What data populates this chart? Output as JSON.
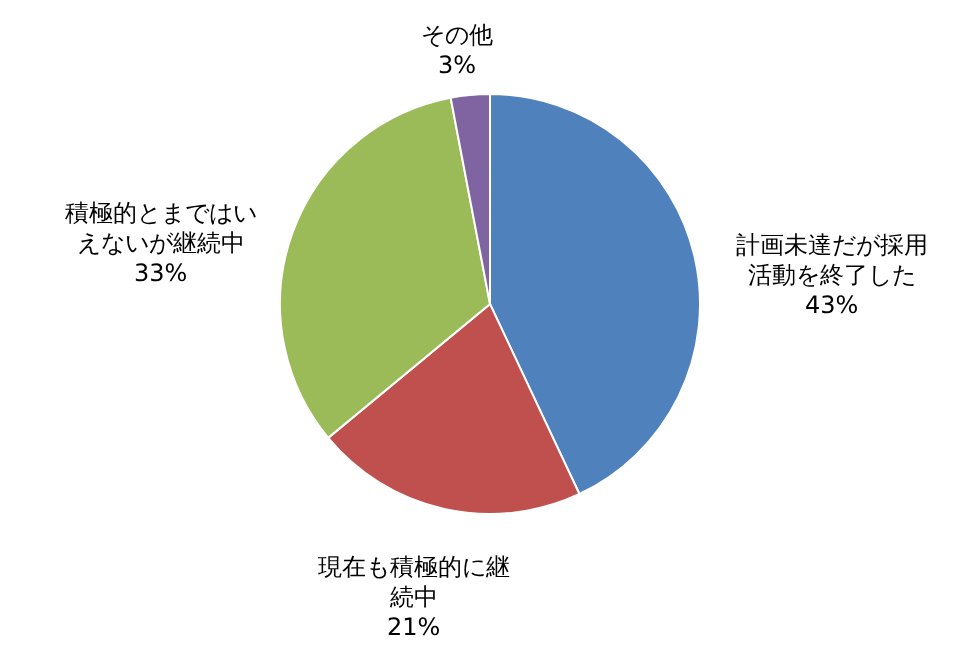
{
  "chart_data": {
    "type": "pie",
    "categories": [
      "計画未達だが採用活動を終了した",
      "現在も積極的に継続中",
      "積極的とまではいえないが継続中",
      "その他"
    ],
    "values": [
      43,
      21,
      33,
      3
    ],
    "value_labels": [
      "43%",
      "21%",
      "33%",
      "3%"
    ],
    "colors": [
      "#4f81bd",
      "#c0504d",
      "#9bbb59",
      "#8064a2"
    ]
  }
}
